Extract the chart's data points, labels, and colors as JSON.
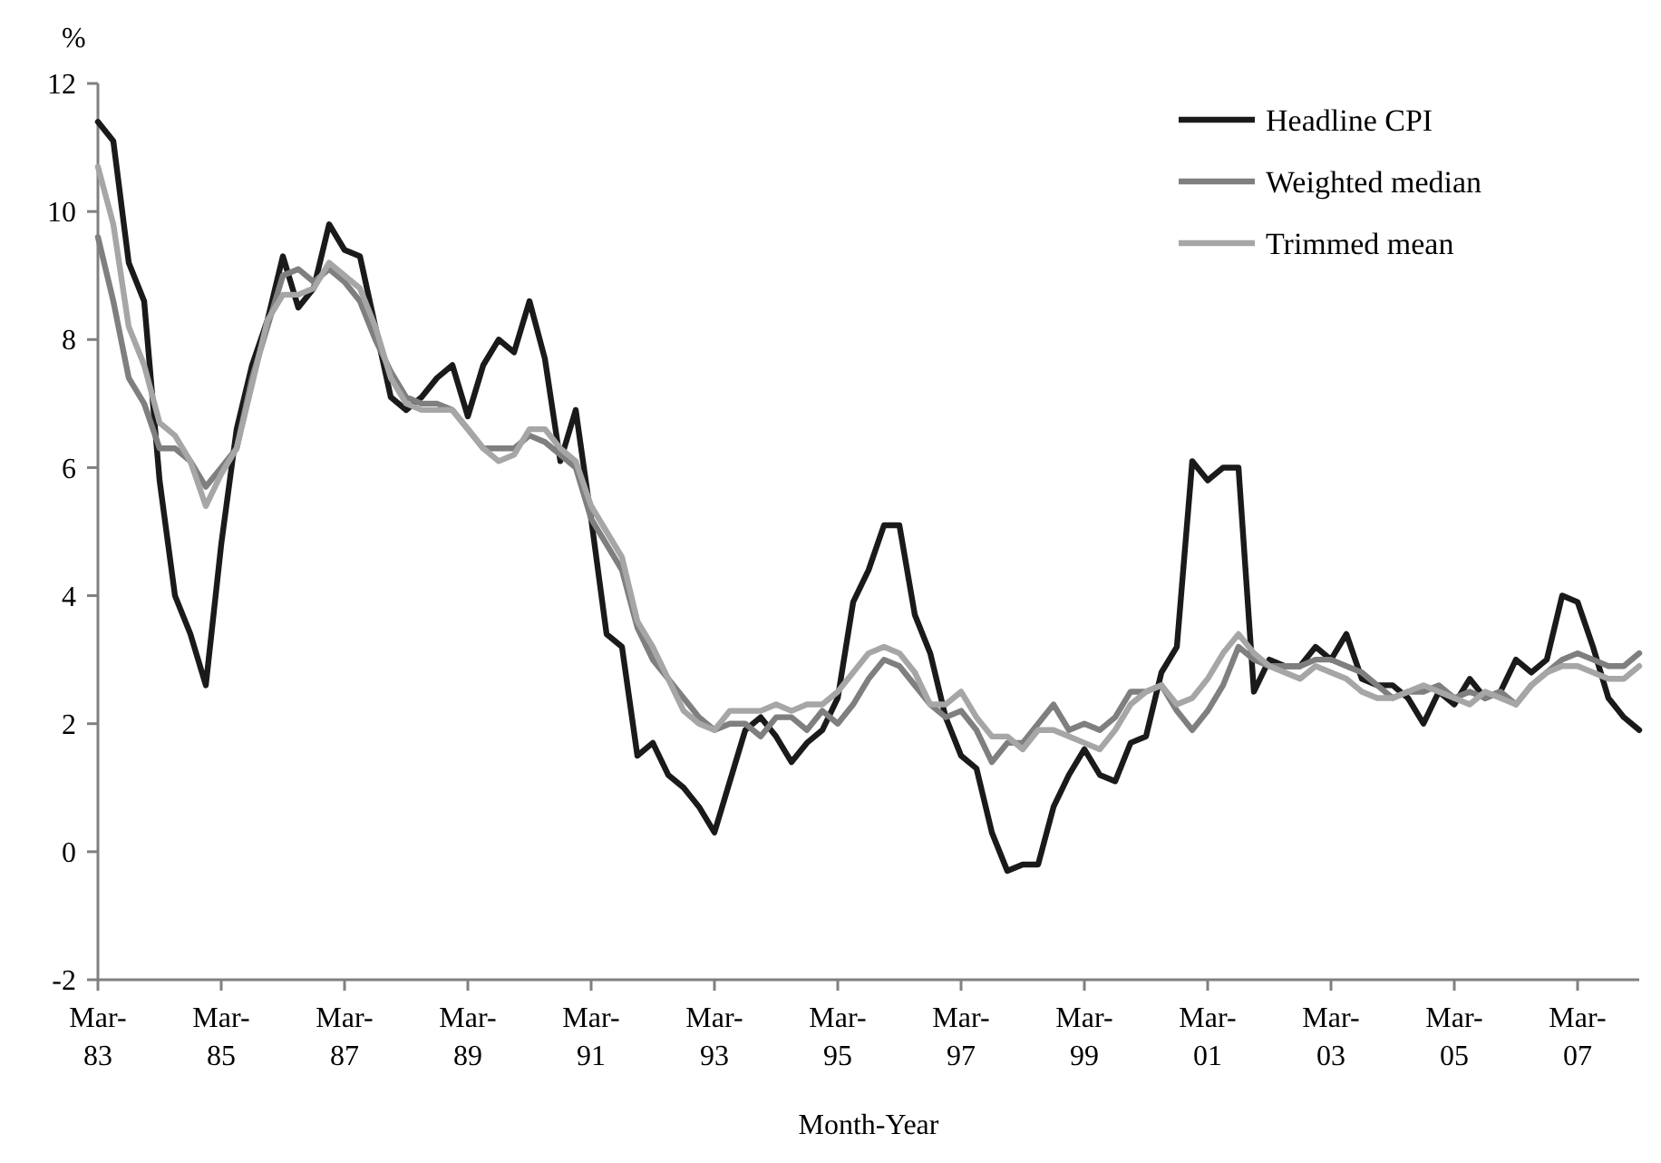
{
  "chart_data": {
    "type": "line",
    "ylabel": "%",
    "xlabel": "Month-Year",
    "categories": [
      "Mar-83",
      null,
      null,
      null,
      null,
      null,
      null,
      null,
      "Mar-85",
      null,
      null,
      null,
      null,
      null,
      null,
      null,
      "Mar-87",
      null,
      null,
      null,
      null,
      null,
      null,
      null,
      "Mar-89",
      null,
      null,
      null,
      null,
      null,
      null,
      null,
      "Mar-91",
      null,
      null,
      null,
      null,
      null,
      null,
      null,
      "Mar-93",
      null,
      null,
      null,
      null,
      null,
      null,
      null,
      "Mar-95",
      null,
      null,
      null,
      null,
      null,
      null,
      null,
      "Mar-97",
      null,
      null,
      null,
      null,
      null,
      null,
      null,
      "Mar-99",
      null,
      null,
      null,
      null,
      null,
      null,
      null,
      "Mar-01",
      null,
      null,
      null,
      null,
      null,
      null,
      null,
      "Mar-03",
      null,
      null,
      null,
      null,
      null,
      null,
      null,
      "Mar-05",
      null,
      null,
      null,
      null,
      null,
      null,
      null,
      "Mar-07",
      null,
      null,
      null,
      null
    ],
    "series": [
      {
        "name": "Headline CPI",
        "color": "#1a1a1a",
        "values": [
          11.4,
          11.1,
          9.2,
          8.6,
          5.8,
          4.0,
          3.4,
          2.6,
          4.8,
          6.6,
          7.6,
          8.3,
          9.3,
          8.5,
          8.8,
          9.8,
          9.4,
          9.3,
          8.2,
          7.1,
          6.9,
          7.1,
          7.4,
          7.6,
          6.8,
          7.6,
          8.0,
          7.8,
          8.6,
          7.7,
          6.1,
          6.9,
          5.2,
          3.4,
          3.2,
          1.5,
          1.7,
          1.2,
          1.0,
          0.7,
          0.3,
          1.1,
          1.9,
          2.1,
          1.8,
          1.4,
          1.7,
          1.9,
          2.4,
          3.9,
          4.4,
          5.1,
          5.1,
          3.7,
          3.1,
          2.1,
          1.5,
          1.3,
          0.3,
          -0.3,
          -0.2,
          -0.2,
          0.7,
          1.2,
          1.6,
          1.2,
          1.1,
          1.7,
          1.8,
          2.8,
          3.2,
          6.1,
          5.8,
          6.0,
          6.0,
          2.5,
          3.0,
          2.9,
          2.9,
          3.2,
          3.0,
          3.4,
          2.7,
          2.6,
          2.6,
          2.4,
          2.0,
          2.5,
          2.3,
          2.7,
          2.4,
          2.5,
          3.0,
          2.8,
          3.0,
          4.0,
          3.9,
          3.2,
          2.4,
          2.1,
          1.9
        ]
      },
      {
        "name": "Weighted median",
        "color": "#7f7f7f",
        "values": [
          9.6,
          8.6,
          7.4,
          7.0,
          6.3,
          6.3,
          6.1,
          5.7,
          6.0,
          6.3,
          7.4,
          8.2,
          9.0,
          9.1,
          8.9,
          9.1,
          8.9,
          8.6,
          8.0,
          7.5,
          7.1,
          7.0,
          7.0,
          6.9,
          6.6,
          6.3,
          6.3,
          6.3,
          6.5,
          6.4,
          6.2,
          6.0,
          5.2,
          4.8,
          4.4,
          3.5,
          3.0,
          2.7,
          2.4,
          2.1,
          1.9,
          2.0,
          2.0,
          1.8,
          2.1,
          2.1,
          1.9,
          2.2,
          2.0,
          2.3,
          2.7,
          3.0,
          2.9,
          2.6,
          2.3,
          2.1,
          2.2,
          1.9,
          1.4,
          1.7,
          1.7,
          2.0,
          2.3,
          1.9,
          2.0,
          1.9,
          2.1,
          2.5,
          2.5,
          2.6,
          2.2,
          1.9,
          2.2,
          2.6,
          3.2,
          3.0,
          2.9,
          2.9,
          2.9,
          3.0,
          3.0,
          2.9,
          2.8,
          2.6,
          2.4,
          2.5,
          2.5,
          2.6,
          2.4,
          2.5,
          2.4,
          2.5,
          2.3,
          2.6,
          2.8,
          3.0,
          3.1,
          3.0,
          2.9,
          2.9,
          3.1
        ]
      },
      {
        "name": "Trimmed mean",
        "color": "#a6a6a6",
        "values": [
          10.7,
          9.8,
          8.2,
          7.6,
          6.7,
          6.5,
          6.1,
          5.4,
          5.9,
          6.3,
          7.3,
          8.3,
          8.7,
          8.7,
          8.8,
          9.2,
          9.0,
          8.8,
          8.2,
          7.4,
          7.0,
          6.9,
          6.9,
          6.9,
          6.6,
          6.3,
          6.1,
          6.2,
          6.6,
          6.6,
          6.3,
          6.1,
          5.4,
          5.0,
          4.6,
          3.6,
          3.2,
          2.7,
          2.2,
          2.0,
          1.9,
          2.2,
          2.2,
          2.2,
          2.3,
          2.2,
          2.3,
          2.3,
          2.5,
          2.8,
          3.1,
          3.2,
          3.1,
          2.8,
          2.3,
          2.3,
          2.5,
          2.1,
          1.8,
          1.8,
          1.6,
          1.9,
          1.9,
          1.8,
          1.7,
          1.6,
          1.9,
          2.3,
          2.5,
          2.6,
          2.3,
          2.4,
          2.7,
          3.1,
          3.4,
          3.1,
          2.9,
          2.8,
          2.7,
          2.9,
          2.8,
          2.7,
          2.5,
          2.4,
          2.4,
          2.5,
          2.6,
          2.5,
          2.4,
          2.3,
          2.5,
          2.4,
          2.3,
          2.6,
          2.8,
          2.9,
          2.9,
          2.8,
          2.7,
          2.7,
          2.9
        ]
      }
    ],
    "ylim": [
      -2,
      12
    ],
    "yticks": [
      -2,
      0,
      2,
      4,
      6,
      8,
      10,
      12
    ],
    "grid": false,
    "legend": "top right",
    "marker": "none",
    "line_style": "solid"
  }
}
